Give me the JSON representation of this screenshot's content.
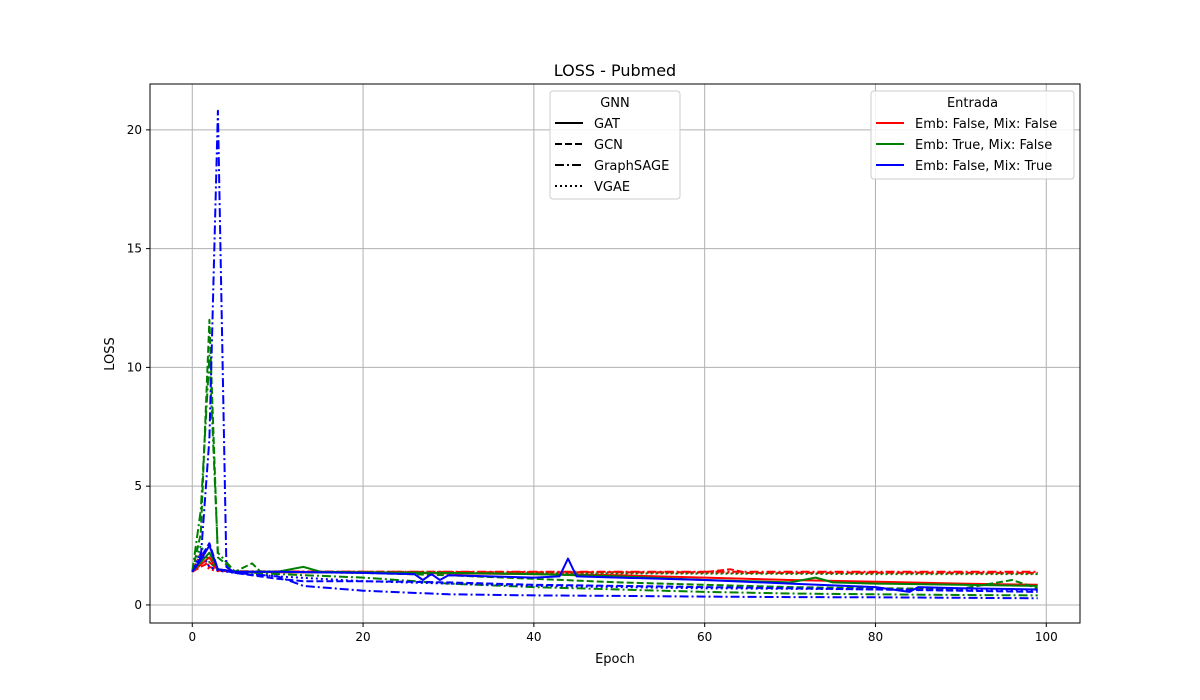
{
  "chart_data": {
    "type": "line",
    "title": "LOSS - Pubmed",
    "xlabel": "Epoch",
    "ylabel": "LOSS",
    "xlim": [
      -4.95,
      103.95
    ],
    "ylim": [
      -0.76,
      21.93
    ],
    "xticks": [
      0,
      20,
      40,
      60,
      80,
      100
    ],
    "yticks": [
      0,
      5,
      10,
      15,
      20
    ],
    "grid": true,
    "legends": [
      {
        "title": "GNN",
        "placement": "top-center",
        "entries": [
          {
            "label": "GAT",
            "style": "solid"
          },
          {
            "label": "GCN",
            "style": "dashed"
          },
          {
            "label": "GraphSAGE",
            "style": "dashdot"
          },
          {
            "label": "VGAE",
            "style": "dotted"
          }
        ]
      },
      {
        "title": "Entrada",
        "placement": "top-right",
        "entries": [
          {
            "label": "Emb: False, Mix: False",
            "color": "#ff0000"
          },
          {
            "label": "Emb: True, Mix: False",
            "color": "#008000"
          },
          {
            "label": "Emb: False, Mix: True",
            "color": "#0000ff"
          }
        ]
      }
    ],
    "series": [
      {
        "model": "GAT",
        "input": "Emb: False, Mix: False",
        "color": "#ff0000",
        "style": "solid",
        "x": [
          0,
          1,
          2,
          3,
          5,
          10,
          20,
          30,
          40,
          50,
          60,
          70,
          80,
          90,
          99
        ],
        "y": [
          1.4,
          1.7,
          2.0,
          1.45,
          1.4,
          1.38,
          1.36,
          1.33,
          1.3,
          1.25,
          1.15,
          1.05,
          0.98,
          0.9,
          0.85
        ]
      },
      {
        "model": "GCN",
        "input": "Emb: False, Mix: False",
        "color": "#ff0000",
        "style": "dashed",
        "x": [
          0,
          1,
          2,
          3,
          5,
          10,
          20,
          40,
          60,
          63,
          65,
          80,
          99
        ],
        "y": [
          1.4,
          1.6,
          1.8,
          1.5,
          1.4,
          1.4,
          1.4,
          1.38,
          1.38,
          1.5,
          1.35,
          1.36,
          1.35
        ]
      },
      {
        "model": "GraphSAGE",
        "input": "Emb: False, Mix: False",
        "color": "#ff0000",
        "style": "dashdot",
        "x": [
          0,
          1,
          2,
          3,
          5,
          20,
          40,
          60,
          80,
          99
        ],
        "y": [
          1.4,
          2.2,
          1.6,
          1.5,
          1.42,
          1.4,
          1.4,
          1.4,
          1.4,
          1.4
        ]
      },
      {
        "model": "VGAE",
        "input": "Emb: False, Mix: False",
        "color": "#ff0000",
        "style": "dotted",
        "x": [
          0,
          1,
          2,
          3,
          5,
          20,
          40,
          60,
          80,
          99
        ],
        "y": [
          1.4,
          1.9,
          1.5,
          1.42,
          1.4,
          1.38,
          1.36,
          1.35,
          1.34,
          1.33
        ]
      },
      {
        "model": "GAT",
        "input": "Emb: True, Mix: False",
        "color": "#008000",
        "style": "solid",
        "x": [
          0,
          1,
          2,
          3,
          5,
          10,
          13,
          15,
          20,
          30,
          40,
          50,
          60,
          70,
          73,
          75,
          80,
          90,
          99
        ],
        "y": [
          1.4,
          1.8,
          2.2,
          1.5,
          1.4,
          1.4,
          1.6,
          1.4,
          1.38,
          1.35,
          1.3,
          1.2,
          1.05,
          0.95,
          1.15,
          0.95,
          0.9,
          0.85,
          0.8
        ]
      },
      {
        "model": "GCN",
        "input": "Emb: True, Mix: False",
        "color": "#008000",
        "style": "dashed",
        "x": [
          0,
          1,
          2,
          3,
          5,
          7,
          8,
          10,
          20,
          30,
          40,
          50,
          60,
          70,
          80,
          90,
          96,
          99
        ],
        "y": [
          1.4,
          3.0,
          12.0,
          2.0,
          1.4,
          1.75,
          1.4,
          1.4,
          1.35,
          1.25,
          1.1,
          0.95,
          0.85,
          0.75,
          0.7,
          0.68,
          1.05,
          0.7
        ]
      },
      {
        "model": "GraphSAGE",
        "input": "Emb: True, Mix: False",
        "color": "#008000",
        "style": "dashdot",
        "x": [
          0,
          1,
          2,
          3,
          5,
          10,
          20,
          30,
          40,
          50,
          60,
          70,
          80,
          90,
          99
        ],
        "y": [
          1.4,
          4.0,
          10.5,
          2.2,
          1.4,
          1.3,
          1.15,
          0.9,
          0.75,
          0.65,
          0.55,
          0.48,
          0.45,
          0.42,
          0.4
        ]
      },
      {
        "model": "VGAE",
        "input": "Emb: True, Mix: False",
        "color": "#008000",
        "style": "dotted",
        "x": [
          0,
          1,
          2,
          3,
          5,
          20,
          40,
          60,
          80,
          99
        ],
        "y": [
          1.4,
          2.5,
          1.8,
          1.5,
          1.4,
          1.35,
          1.33,
          1.32,
          1.3,
          1.3
        ]
      },
      {
        "model": "GAT",
        "input": "Emb: False, Mix: True",
        "color": "#0000ff",
        "style": "solid",
        "x": [
          0,
          1,
          2,
          3,
          5,
          10,
          20,
          26,
          27,
          28,
          29,
          30,
          40,
          43,
          44,
          45,
          50,
          60,
          70,
          80,
          83,
          84,
          85,
          90,
          99
        ],
        "y": [
          1.4,
          1.9,
          2.5,
          1.5,
          1.4,
          1.4,
          1.35,
          1.3,
          1.05,
          1.3,
          1.05,
          1.25,
          1.15,
          1.2,
          1.95,
          1.2,
          1.15,
          1.05,
          0.9,
          0.75,
          0.6,
          0.55,
          0.75,
          0.7,
          0.65
        ]
      },
      {
        "model": "GCN",
        "input": "Emb: False, Mix: True",
        "color": "#0000ff",
        "style": "dashed",
        "x": [
          0,
          1,
          2,
          3,
          5,
          10,
          13,
          20,
          30,
          40,
          50,
          60,
          70,
          80,
          90,
          99
        ],
        "y": [
          1.4,
          2.0,
          2.6,
          1.5,
          1.35,
          1.1,
          1.0,
          1.0,
          0.95,
          0.85,
          0.8,
          0.75,
          0.7,
          0.65,
          0.6,
          0.55
        ]
      },
      {
        "model": "GraphSAGE",
        "input": "Emb: False, Mix: True",
        "color": "#0000ff",
        "style": "dashdot",
        "x": [
          0,
          1,
          2,
          3,
          4,
          5,
          10,
          13,
          20,
          30,
          40,
          50,
          60,
          70,
          80,
          90,
          99
        ],
        "y": [
          1.4,
          2.0,
          7.0,
          20.8,
          1.6,
          1.35,
          1.2,
          0.8,
          0.6,
          0.45,
          0.4,
          0.38,
          0.35,
          0.33,
          0.32,
          0.3,
          0.28
        ]
      },
      {
        "model": "VGAE",
        "input": "Emb: False, Mix: True",
        "color": "#0000ff",
        "style": "dotted",
        "x": [
          0,
          1,
          2,
          3,
          5,
          10,
          20,
          30,
          40,
          50,
          60,
          70,
          80,
          90,
          99
        ],
        "y": [
          1.4,
          2.2,
          1.6,
          1.45,
          1.35,
          1.2,
          1.0,
          0.9,
          0.8,
          0.75,
          0.7,
          0.68,
          0.66,
          0.64,
          0.62
        ]
      }
    ]
  }
}
